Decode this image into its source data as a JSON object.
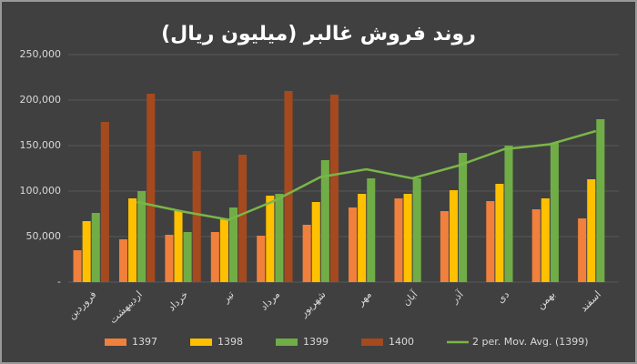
{
  "chart_data": {
    "type": "bar",
    "title": "روند فروش غالبر (میلیون ریال)",
    "categories": [
      "فروردین",
      "اردیبهشت",
      "خرداد",
      "تیر",
      "مرداد",
      "شهریور",
      "مهر",
      "آبان",
      "آذر",
      "دی",
      "بهمن",
      "اسفند"
    ],
    "series": [
      {
        "name": "1397",
        "color": "#f0803c",
        "values": [
          35000,
          47000,
          52000,
          55000,
          51000,
          63000,
          82000,
          92000,
          78000,
          89000,
          80000,
          70000
        ]
      },
      {
        "name": "1398",
        "color": "#ffc000",
        "values": [
          67000,
          92000,
          78000,
          70000,
          95000,
          88000,
          97000,
          97000,
          101000,
          108000,
          92000,
          113000
        ]
      },
      {
        "name": "1399",
        "color": "#70ad47",
        "values": [
          76000,
          100000,
          55000,
          82000,
          97000,
          134000,
          114000,
          114000,
          142000,
          150000,
          153000,
          179000
        ]
      },
      {
        "name": "1400",
        "color": "#a5491f",
        "values": [
          176000,
          207000,
          144000,
          140000,
          210000,
          206000,
          null,
          null,
          null,
          null,
          null,
          null
        ]
      },
      {
        "name": "2 per. Mov. Avg. (1399)",
        "color": "#7ab648",
        "type": "line",
        "values": [
          null,
          88000,
          77500,
          68500,
          89500,
          115500,
          124000,
          114000,
          128000,
          146000,
          151500,
          166000
        ]
      }
    ],
    "ylim": [
      0,
      250000
    ],
    "yticks": [
      {
        "value": 0,
        "label": "-"
      },
      {
        "value": 50000,
        "label": "50,000"
      },
      {
        "value": 100000,
        "label": "100,000"
      },
      {
        "value": 150000,
        "label": "150,000"
      },
      {
        "value": 200000,
        "label": "200,000"
      },
      {
        "value": 250000,
        "label": "250,000"
      }
    ],
    "grid": true,
    "legend": "bottom"
  }
}
